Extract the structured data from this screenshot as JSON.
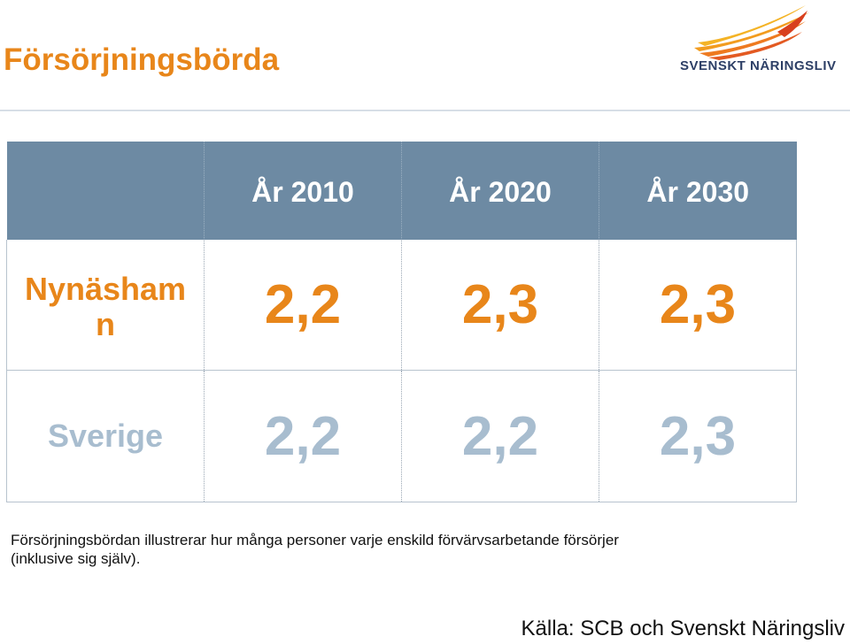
{
  "header": {
    "title": "Försörjningsbörda",
    "logo_text": "SVENSKT NÄRINGSLIV"
  },
  "colors": {
    "accent_orange": "#e8861a",
    "header_blue": "#6d8aa3",
    "muted_blue": "#a8bdcf",
    "logo_navy": "#2d3f66"
  },
  "table": {
    "columns": [
      "År 2010",
      "År 2020",
      "År 2030"
    ],
    "rows": [
      {
        "label": "Nynäsham\nn",
        "values": [
          "2,2",
          "2,3",
          "2,3"
        ]
      },
      {
        "label": "Sverige",
        "values": [
          "2,2",
          "2,2",
          "2,3"
        ]
      }
    ]
  },
  "footnote": "Försörjningsbördan illustrerar hur många personer varje enskild förvärvsarbetande försörjer\n(inklusive sig själv).",
  "source": "Källa: SCB och Svenskt Näringsliv"
}
